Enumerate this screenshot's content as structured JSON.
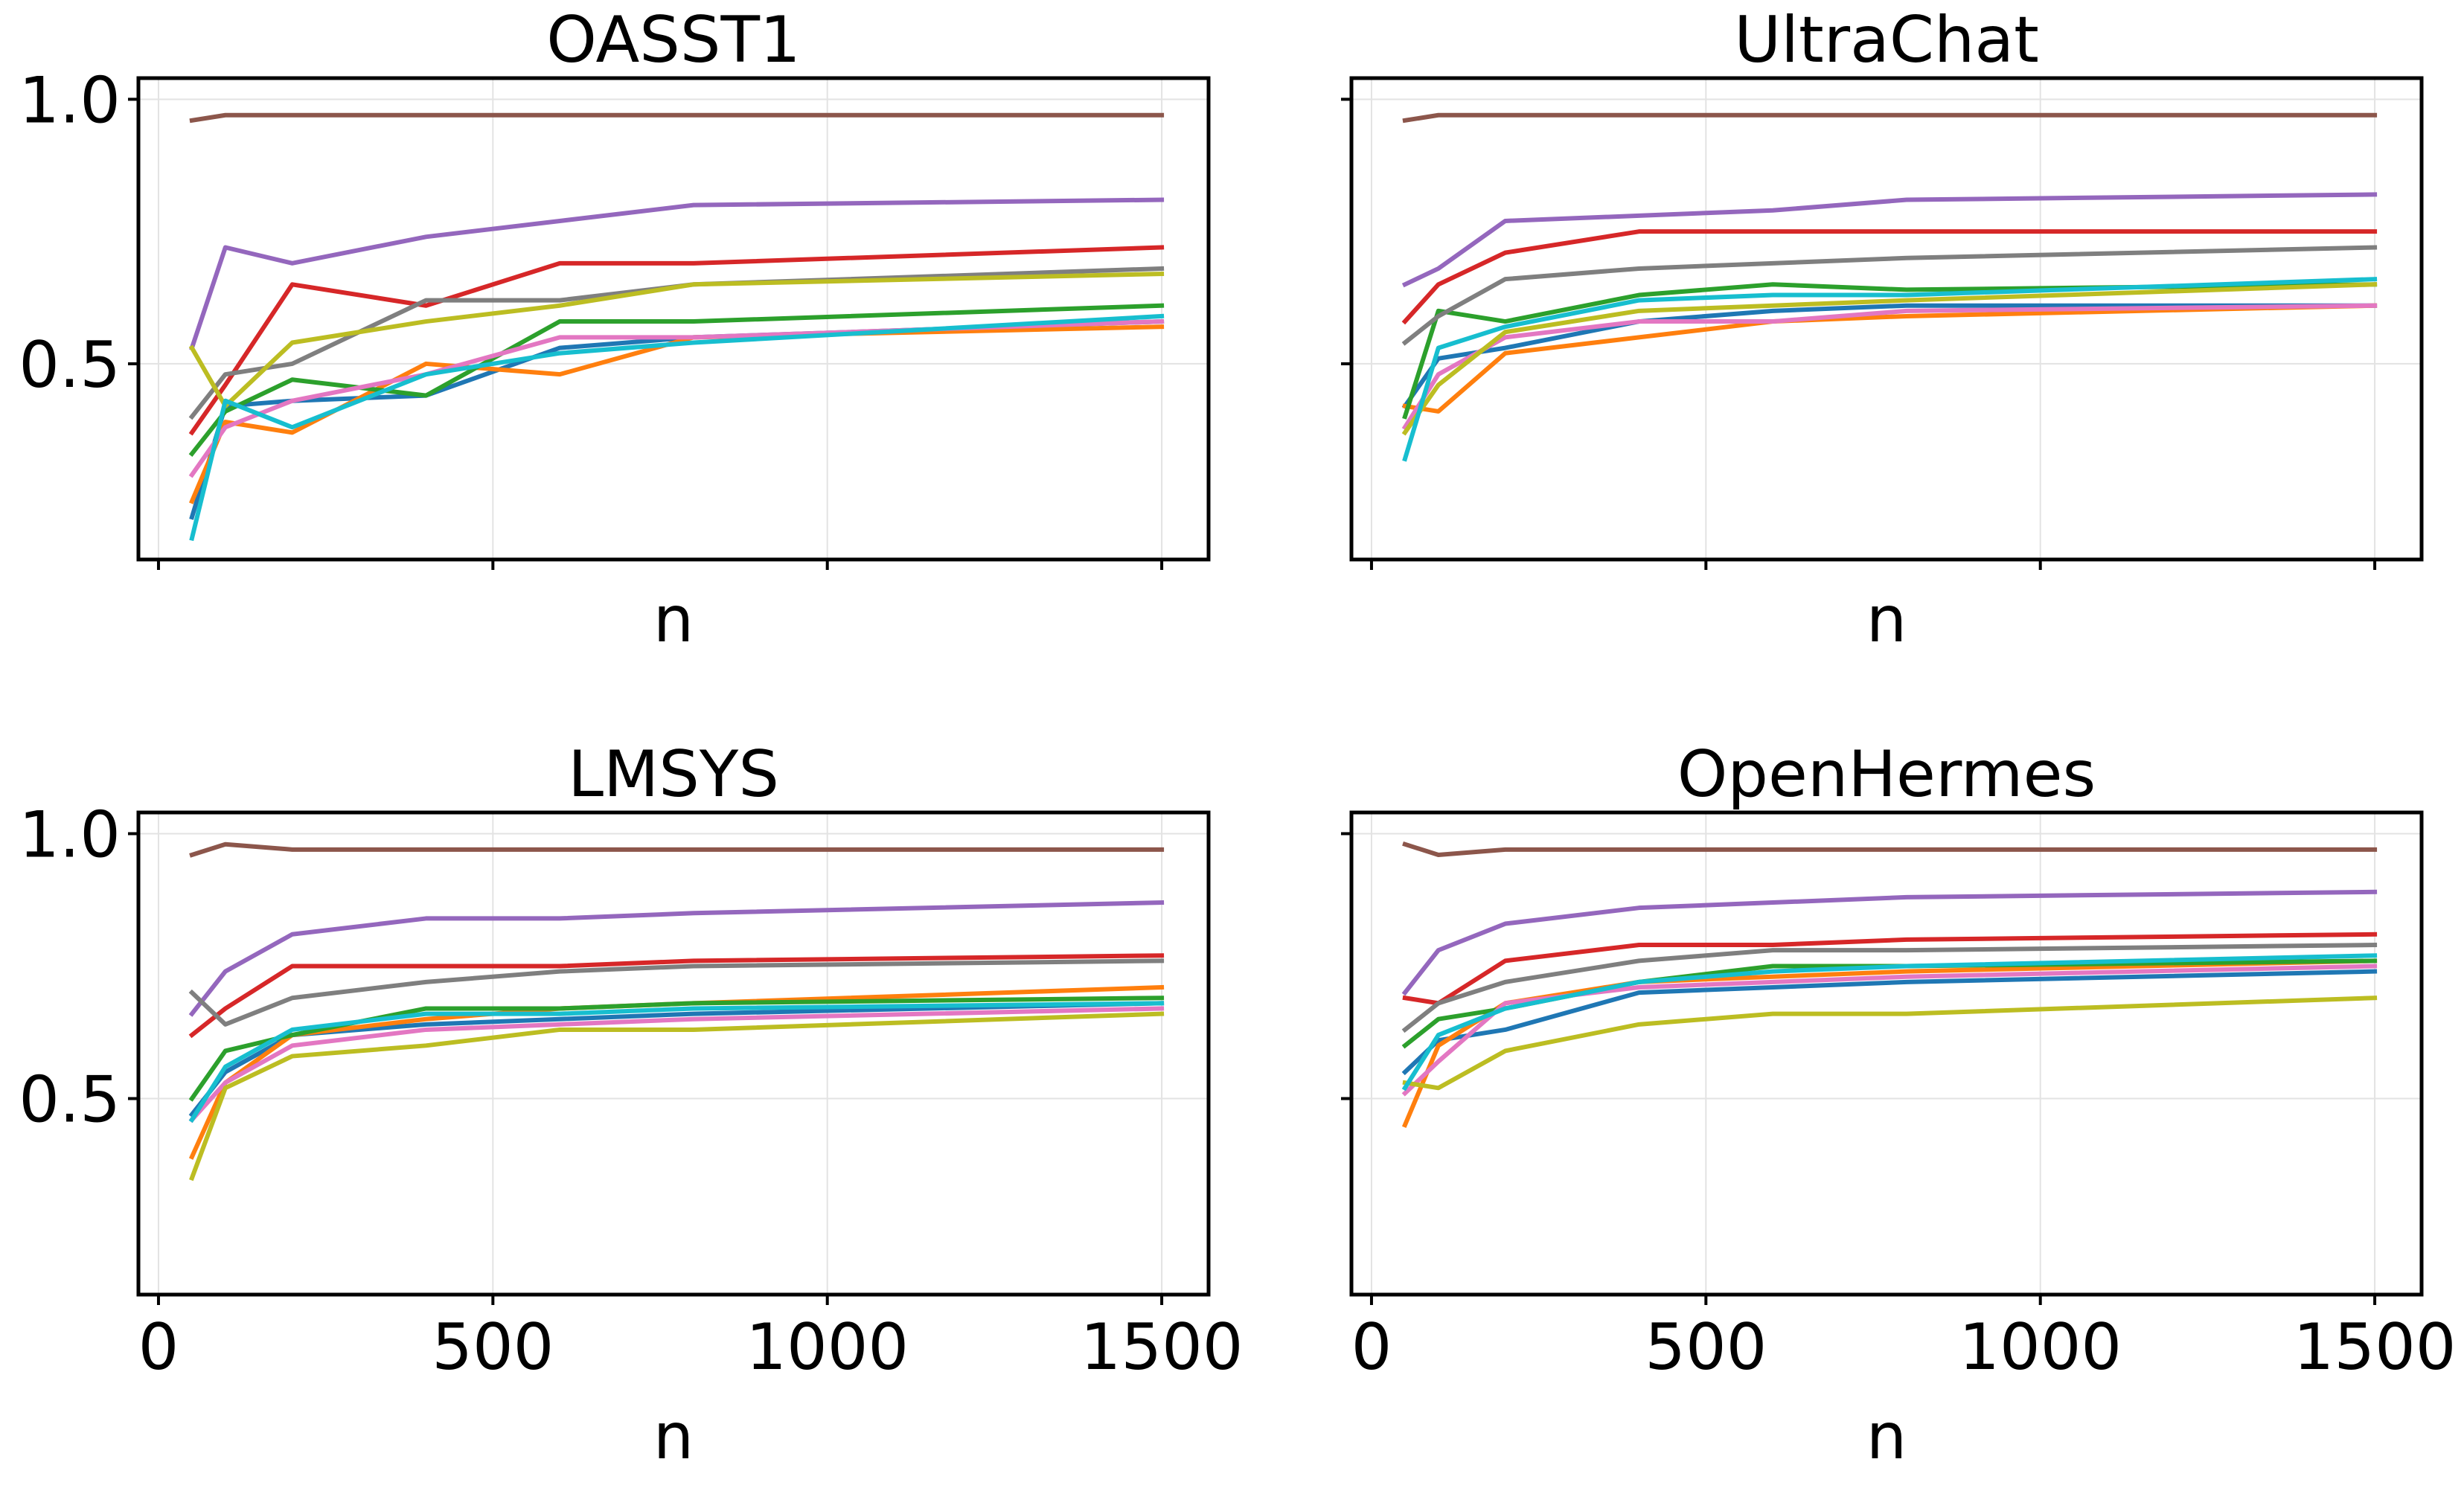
{
  "chart_data": [
    {
      "type": "line",
      "title": "OASST1",
      "xlabel": "n",
      "ylabel": "",
      "xlim": [
        -30,
        1570
      ],
      "ylim": [
        0.13,
        1.04
      ],
      "x_ticks": [
        0,
        500,
        1000,
        1500
      ],
      "x_tick_labels": [
        "0",
        "500",
        "1000",
        "1500"
      ],
      "show_x_tick_labels": false,
      "y_ticks": [
        0.5,
        1.0
      ],
      "y_tick_labels": [
        "0.5",
        "1.0"
      ],
      "grid": true,
      "x": [
        50,
        100,
        200,
        400,
        600,
        800,
        1500
      ],
      "series": [
        {
          "name": "tab:blue",
          "color": "#1f77b4",
          "values": [
            0.21,
            0.42,
            0.43,
            0.44,
            0.53,
            0.55,
            0.58
          ]
        },
        {
          "name": "tab:orange",
          "color": "#ff7f0e",
          "values": [
            0.24,
            0.39,
            0.37,
            0.5,
            0.48,
            0.55,
            0.57
          ]
        },
        {
          "name": "tab:green",
          "color": "#2ca02c",
          "values": [
            0.33,
            0.41,
            0.47,
            0.44,
            0.58,
            0.58,
            0.61
          ]
        },
        {
          "name": "tab:red",
          "color": "#d62728",
          "values": [
            0.37,
            0.46,
            0.65,
            0.61,
            0.69,
            0.69,
            0.72
          ]
        },
        {
          "name": "tab:purple",
          "color": "#9467bd",
          "values": [
            0.53,
            0.72,
            0.69,
            0.74,
            0.77,
            0.8,
            0.81
          ]
        },
        {
          "name": "tab:brown",
          "color": "#8c564b",
          "values": [
            0.96,
            0.97,
            0.97,
            0.97,
            0.97,
            0.97,
            0.97
          ]
        },
        {
          "name": "tab:pink",
          "color": "#e377c2",
          "values": [
            0.29,
            0.38,
            0.43,
            0.48,
            0.55,
            0.55,
            0.58
          ]
        },
        {
          "name": "tab:gray",
          "color": "#7f7f7f",
          "values": [
            0.4,
            0.48,
            0.5,
            0.62,
            0.62,
            0.65,
            0.68
          ]
        },
        {
          "name": "tab:olive",
          "color": "#bcbd22",
          "values": [
            0.53,
            0.42,
            0.54,
            0.58,
            0.61,
            0.65,
            0.67
          ]
        },
        {
          "name": "tab:cyan",
          "color": "#17becf",
          "values": [
            0.17,
            0.43,
            0.38,
            0.48,
            0.52,
            0.54,
            0.59
          ]
        }
      ]
    },
    {
      "type": "line",
      "title": "UltraChat",
      "xlabel": "n",
      "ylabel": "",
      "xlim": [
        -30,
        1570
      ],
      "ylim": [
        0.13,
        1.04
      ],
      "x_ticks": [
        0,
        500,
        1000,
        1500
      ],
      "x_tick_labels": [
        "0",
        "500",
        "1000",
        "1500"
      ],
      "show_x_tick_labels": false,
      "y_ticks": [
        0.5,
        1.0
      ],
      "y_tick_labels": [
        "0.5",
        "1.0"
      ],
      "grid": true,
      "x": [
        50,
        100,
        200,
        400,
        600,
        800,
        1500
      ],
      "series": [
        {
          "name": "tab:blue",
          "color": "#1f77b4",
          "values": [
            0.42,
            0.51,
            0.53,
            0.58,
            0.6,
            0.61,
            0.61
          ]
        },
        {
          "name": "tab:orange",
          "color": "#ff7f0e",
          "values": [
            0.42,
            0.41,
            0.52,
            0.55,
            0.58,
            0.59,
            0.61
          ]
        },
        {
          "name": "tab:green",
          "color": "#2ca02c",
          "values": [
            0.4,
            0.6,
            0.58,
            0.63,
            0.65,
            0.64,
            0.65
          ]
        },
        {
          "name": "tab:red",
          "color": "#d62728",
          "values": [
            0.58,
            0.65,
            0.71,
            0.75,
            0.75,
            0.75,
            0.75
          ]
        },
        {
          "name": "tab:purple",
          "color": "#9467bd",
          "values": [
            0.65,
            0.68,
            0.77,
            0.78,
            0.79,
            0.81,
            0.82
          ]
        },
        {
          "name": "tab:brown",
          "color": "#8c564b",
          "values": [
            0.96,
            0.97,
            0.97,
            0.97,
            0.97,
            0.97,
            0.97
          ]
        },
        {
          "name": "tab:pink",
          "color": "#e377c2",
          "values": [
            0.38,
            0.48,
            0.55,
            0.58,
            0.58,
            0.6,
            0.61
          ]
        },
        {
          "name": "tab:gray",
          "color": "#7f7f7f",
          "values": [
            0.54,
            0.59,
            0.66,
            0.68,
            0.69,
            0.7,
            0.72
          ]
        },
        {
          "name": "tab:olive",
          "color": "#bcbd22",
          "values": [
            0.37,
            0.46,
            0.56,
            0.6,
            0.61,
            0.62,
            0.65
          ]
        },
        {
          "name": "tab:cyan",
          "color": "#17becf",
          "values": [
            0.32,
            0.53,
            0.57,
            0.62,
            0.63,
            0.63,
            0.66
          ]
        }
      ]
    },
    {
      "type": "line",
      "title": "LMSYS",
      "xlabel": "n",
      "ylabel": "",
      "xlim": [
        -30,
        1570
      ],
      "ylim": [
        0.13,
        1.04
      ],
      "x_ticks": [
        0,
        500,
        1000,
        1500
      ],
      "x_tick_labels": [
        "0",
        "500",
        "1000",
        "1500"
      ],
      "show_x_tick_labels": true,
      "y_ticks": [
        0.5,
        1.0
      ],
      "y_tick_labels": [
        "0.5",
        "1.0"
      ],
      "grid": true,
      "x": [
        50,
        100,
        200,
        400,
        600,
        800,
        1500
      ],
      "series": [
        {
          "name": "tab:blue",
          "color": "#1f77b4",
          "values": [
            0.47,
            0.55,
            0.62,
            0.64,
            0.65,
            0.66,
            0.68
          ]
        },
        {
          "name": "tab:orange",
          "color": "#ff7f0e",
          "values": [
            0.39,
            0.53,
            0.62,
            0.65,
            0.67,
            0.68,
            0.71
          ]
        },
        {
          "name": "tab:green",
          "color": "#2ca02c",
          "values": [
            0.5,
            0.59,
            0.62,
            0.67,
            0.67,
            0.68,
            0.69
          ]
        },
        {
          "name": "tab:red",
          "color": "#d62728",
          "values": [
            0.62,
            0.67,
            0.75,
            0.75,
            0.75,
            0.76,
            0.77
          ]
        },
        {
          "name": "tab:purple",
          "color": "#9467bd",
          "values": [
            0.66,
            0.74,
            0.81,
            0.84,
            0.84,
            0.85,
            0.87
          ]
        },
        {
          "name": "tab:brown",
          "color": "#8c564b",
          "values": [
            0.96,
            0.98,
            0.97,
            0.97,
            0.97,
            0.97,
            0.97
          ]
        },
        {
          "name": "tab:pink",
          "color": "#e377c2",
          "values": [
            0.46,
            0.53,
            0.6,
            0.63,
            0.64,
            0.65,
            0.67
          ]
        },
        {
          "name": "tab:gray",
          "color": "#7f7f7f",
          "values": [
            0.7,
            0.64,
            0.69,
            0.72,
            0.74,
            0.75,
            0.76
          ]
        },
        {
          "name": "tab:olive",
          "color": "#bcbd22",
          "values": [
            0.35,
            0.52,
            0.58,
            0.6,
            0.63,
            0.63,
            0.66
          ]
        },
        {
          "name": "tab:cyan",
          "color": "#17becf",
          "values": [
            0.46,
            0.56,
            0.63,
            0.66,
            0.66,
            0.67,
            0.68
          ]
        }
      ]
    },
    {
      "type": "line",
      "title": "OpenHermes",
      "xlabel": "n",
      "ylabel": "",
      "xlim": [
        -30,
        1570
      ],
      "ylim": [
        0.13,
        1.04
      ],
      "x_ticks": [
        0,
        500,
        1000,
        1500
      ],
      "x_tick_labels": [
        "0",
        "500",
        "1000",
        "1500"
      ],
      "show_x_tick_labels": true,
      "y_ticks": [
        0.5,
        1.0
      ],
      "y_tick_labels": [
        "0.5",
        "1.0"
      ],
      "grid": true,
      "x": [
        50,
        100,
        200,
        400,
        600,
        800,
        1500
      ],
      "series": [
        {
          "name": "tab:blue",
          "color": "#1f77b4",
          "values": [
            0.55,
            0.61,
            0.63,
            0.7,
            0.71,
            0.72,
            0.74
          ]
        },
        {
          "name": "tab:orange",
          "color": "#ff7f0e",
          "values": [
            0.45,
            0.6,
            0.68,
            0.72,
            0.73,
            0.74,
            0.76
          ]
        },
        {
          "name": "tab:green",
          "color": "#2ca02c",
          "values": [
            0.6,
            0.65,
            0.67,
            0.72,
            0.75,
            0.75,
            0.76
          ]
        },
        {
          "name": "tab:red",
          "color": "#d62728",
          "values": [
            0.69,
            0.68,
            0.76,
            0.79,
            0.79,
            0.8,
            0.81
          ]
        },
        {
          "name": "tab:purple",
          "color": "#9467bd",
          "values": [
            0.7,
            0.78,
            0.83,
            0.86,
            0.87,
            0.88,
            0.89
          ]
        },
        {
          "name": "tab:brown",
          "color": "#8c564b",
          "values": [
            0.98,
            0.96,
            0.97,
            0.97,
            0.97,
            0.97,
            0.97
          ]
        },
        {
          "name": "tab:pink",
          "color": "#e377c2",
          "values": [
            0.51,
            0.57,
            0.68,
            0.71,
            0.72,
            0.73,
            0.75
          ]
        },
        {
          "name": "tab:gray",
          "color": "#7f7f7f",
          "values": [
            0.63,
            0.68,
            0.72,
            0.76,
            0.78,
            0.78,
            0.79
          ]
        },
        {
          "name": "tab:olive",
          "color": "#bcbd22",
          "values": [
            0.53,
            0.52,
            0.59,
            0.64,
            0.66,
            0.66,
            0.69
          ]
        },
        {
          "name": "tab:cyan",
          "color": "#17becf",
          "values": [
            0.52,
            0.62,
            0.67,
            0.72,
            0.74,
            0.75,
            0.77
          ]
        }
      ]
    }
  ]
}
